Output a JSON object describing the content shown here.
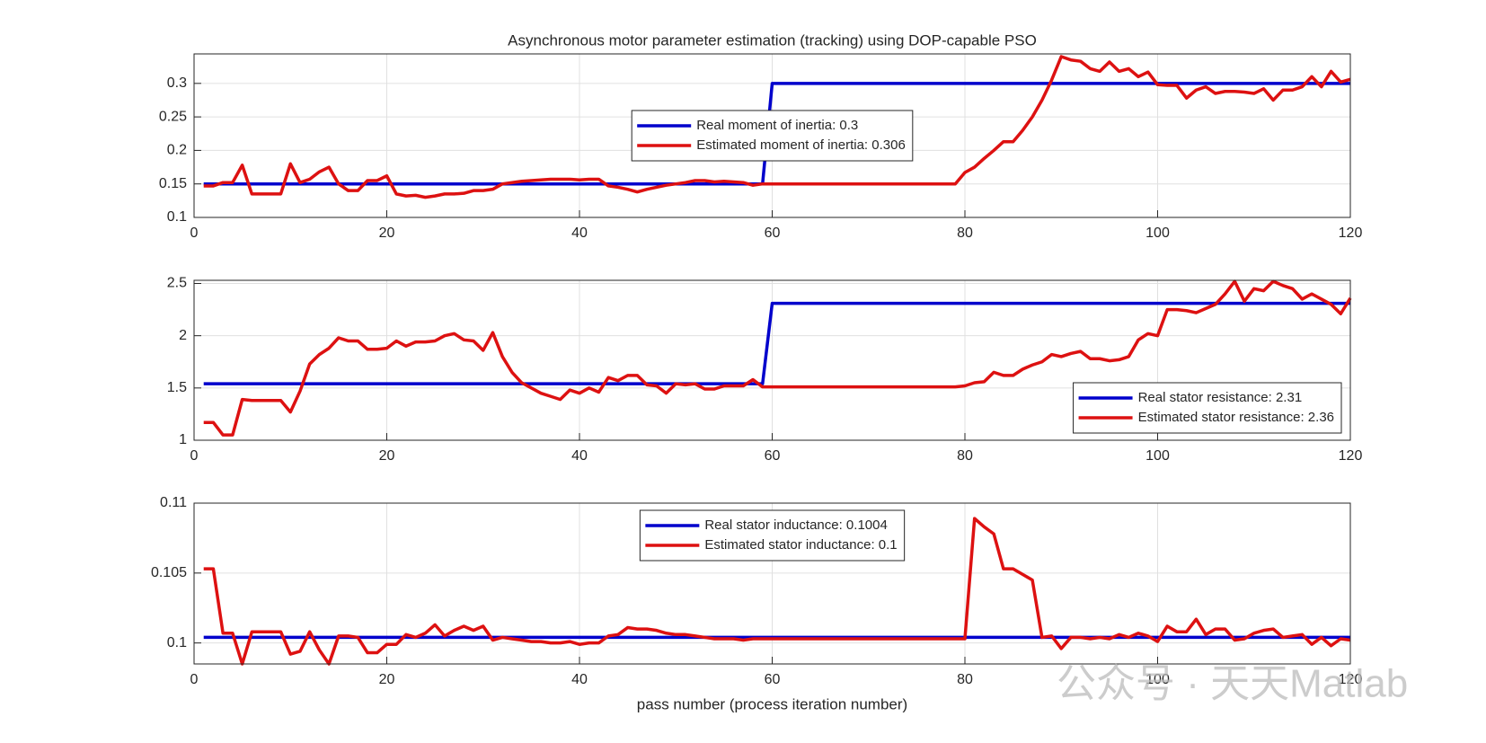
{
  "chart_data": [
    {
      "type": "line",
      "title": "Asynchronous motor parameter estimation (tracking) using DOP-capable PSO",
      "xlim": [
        0,
        120
      ],
      "xticks": [
        0,
        20,
        40,
        60,
        80,
        100,
        120
      ],
      "ylim": [
        0.1,
        0.344
      ],
      "yticks": [
        0.1,
        0.15,
        0.2,
        0.25,
        0.3
      ],
      "grid": true,
      "legend": "center",
      "series": [
        {
          "name": "Real moment of inertia: 0.3",
          "color": "#0000cc",
          "x": [
            1,
            59,
            60,
            120
          ],
          "values": [
            0.15,
            0.15,
            0.3,
            0.3
          ]
        },
        {
          "name": "Estimated moment of inertia: 0.306",
          "color": "#dd1111",
          "x": [
            1,
            2,
            3,
            4,
            5,
            6,
            7,
            8,
            9,
            10,
            11,
            12,
            13,
            14,
            15,
            16,
            17,
            18,
            19,
            20,
            21,
            22,
            23,
            24,
            25,
            26,
            27,
            28,
            29,
            30,
            31,
            32,
            33,
            34,
            35,
            36,
            37,
            38,
            39,
            40,
            41,
            42,
            43,
            44,
            45,
            46,
            47,
            48,
            49,
            50,
            51,
            52,
            53,
            54,
            55,
            56,
            57,
            58,
            59,
            60,
            61,
            62,
            63,
            64,
            65,
            66,
            67,
            68,
            69,
            70,
            71,
            72,
            73,
            74,
            75,
            76,
            77,
            78,
            79,
            80,
            81,
            82,
            83,
            84,
            85,
            86,
            87,
            88,
            89,
            90,
            91,
            92,
            93,
            94,
            95,
            96,
            97,
            98,
            99,
            100,
            101,
            102,
            103,
            104,
            105,
            106,
            107,
            108,
            109,
            110,
            111,
            112,
            113,
            114,
            115,
            116,
            117,
            118,
            119,
            120
          ],
          "values": [
            0.147,
            0.147,
            0.152,
            0.152,
            0.178,
            0.135,
            0.135,
            0.135,
            0.135,
            0.18,
            0.152,
            0.157,
            0.168,
            0.175,
            0.15,
            0.14,
            0.14,
            0.155,
            0.155,
            0.162,
            0.135,
            0.132,
            0.133,
            0.13,
            0.132,
            0.135,
            0.135,
            0.136,
            0.14,
            0.14,
            0.142,
            0.15,
            0.152,
            0.154,
            0.155,
            0.156,
            0.157,
            0.157,
            0.157,
            0.156,
            0.157,
            0.157,
            0.147,
            0.145,
            0.142,
            0.138,
            0.142,
            0.145,
            0.148,
            0.15,
            0.152,
            0.155,
            0.155,
            0.153,
            0.154,
            0.153,
            0.152,
            0.148,
            0.15,
            0.15,
            0.15,
            0.15,
            0.15,
            0.15,
            0.15,
            0.15,
            0.15,
            0.15,
            0.15,
            0.15,
            0.15,
            0.15,
            0.15,
            0.15,
            0.15,
            0.15,
            0.15,
            0.15,
            0.15,
            0.167,
            0.175,
            0.188,
            0.2,
            0.213,
            0.213,
            0.23,
            0.25,
            0.275,
            0.305,
            0.34,
            0.335,
            0.333,
            0.322,
            0.318,
            0.332,
            0.318,
            0.322,
            0.31,
            0.317,
            0.298,
            0.297,
            0.297,
            0.278,
            0.29,
            0.295,
            0.285,
            0.288,
            0.288,
            0.287,
            0.285,
            0.292,
            0.275,
            0.29,
            0.29,
            0.295,
            0.31,
            0.295,
            0.318,
            0.302,
            0.306
          ]
        }
      ]
    },
    {
      "type": "line",
      "xlim": [
        0,
        120
      ],
      "xticks": [
        0,
        20,
        40,
        60,
        80,
        100,
        120
      ],
      "ylim": [
        1,
        2.53
      ],
      "yticks": [
        1,
        1.5,
        2,
        2.5
      ],
      "grid": true,
      "legend": "southeast",
      "series": [
        {
          "name": "Real stator resistance: 2.31",
          "color": "#0000cc",
          "x": [
            1,
            59,
            60,
            120
          ],
          "values": [
            1.54,
            1.54,
            2.31,
            2.31
          ]
        },
        {
          "name": "Estimated stator resistance: 2.36",
          "color": "#dd1111",
          "x": [
            1,
            2,
            3,
            4,
            5,
            6,
            7,
            8,
            9,
            10,
            11,
            12,
            13,
            14,
            15,
            16,
            17,
            18,
            19,
            20,
            21,
            22,
            23,
            24,
            25,
            26,
            27,
            28,
            29,
            30,
            31,
            32,
            33,
            34,
            35,
            36,
            37,
            38,
            39,
            40,
            41,
            42,
            43,
            44,
            45,
            46,
            47,
            48,
            49,
            50,
            51,
            52,
            53,
            54,
            55,
            56,
            57,
            58,
            59,
            60,
            61,
            62,
            63,
            64,
            65,
            66,
            67,
            68,
            69,
            70,
            71,
            72,
            73,
            74,
            75,
            76,
            77,
            78,
            79,
            80,
            81,
            82,
            83,
            84,
            85,
            86,
            87,
            88,
            89,
            90,
            91,
            92,
            93,
            94,
            95,
            96,
            97,
            98,
            99,
            100,
            101,
            102,
            103,
            104,
            105,
            106,
            107,
            108,
            109,
            110,
            111,
            112,
            113,
            114,
            115,
            116,
            117,
            118,
            119,
            120
          ],
          "values": [
            1.17,
            1.17,
            1.05,
            1.05,
            1.39,
            1.38,
            1.38,
            1.38,
            1.38,
            1.27,
            1.47,
            1.73,
            1.82,
            1.88,
            1.98,
            1.95,
            1.95,
            1.87,
            1.87,
            1.88,
            1.95,
            1.9,
            1.94,
            1.94,
            1.95,
            2.0,
            2.02,
            1.96,
            1.95,
            1.86,
            2.03,
            1.8,
            1.65,
            1.55,
            1.5,
            1.45,
            1.42,
            1.39,
            1.48,
            1.45,
            1.5,
            1.46,
            1.6,
            1.57,
            1.62,
            1.62,
            1.53,
            1.52,
            1.45,
            1.54,
            1.53,
            1.54,
            1.49,
            1.49,
            1.52,
            1.52,
            1.52,
            1.58,
            1.51,
            1.51,
            1.51,
            1.51,
            1.51,
            1.51,
            1.51,
            1.51,
            1.51,
            1.51,
            1.51,
            1.51,
            1.51,
            1.51,
            1.51,
            1.51,
            1.51,
            1.51,
            1.51,
            1.51,
            1.51,
            1.52,
            1.55,
            1.56,
            1.65,
            1.62,
            1.62,
            1.68,
            1.72,
            1.75,
            1.82,
            1.8,
            1.83,
            1.85,
            1.78,
            1.78,
            1.76,
            1.77,
            1.8,
            1.96,
            2.02,
            2.0,
            2.25,
            2.25,
            2.24,
            2.22,
            2.26,
            2.3,
            2.4,
            2.52,
            2.33,
            2.45,
            2.43,
            2.52,
            2.48,
            2.45,
            2.35,
            2.4,
            2.35,
            2.3,
            2.21,
            2.36
          ]
        }
      ]
    },
    {
      "type": "line",
      "xlabel": "pass number (process iteration number)",
      "xlim": [
        0,
        120
      ],
      "xticks": [
        0,
        20,
        40,
        60,
        80,
        100,
        120
      ],
      "ylim": [
        0.0985,
        0.11
      ],
      "yticks": [
        0.1,
        0.105,
        0.11
      ],
      "grid": true,
      "legend": "north",
      "series": [
        {
          "name": "Real stator inductance: 0.1004",
          "color": "#0000cc",
          "x": [
            1,
            120
          ],
          "values": [
            0.1004,
            0.1004
          ]
        },
        {
          "name": "Estimated stator inductance: 0.1",
          "color": "#dd1111",
          "x": [
            1,
            2,
            3,
            4,
            5,
            6,
            7,
            8,
            9,
            10,
            11,
            12,
            13,
            14,
            15,
            16,
            17,
            18,
            19,
            20,
            21,
            22,
            23,
            24,
            25,
            26,
            27,
            28,
            29,
            30,
            31,
            32,
            33,
            34,
            35,
            36,
            37,
            38,
            39,
            40,
            41,
            42,
            43,
            44,
            45,
            46,
            47,
            48,
            49,
            50,
            51,
            52,
            53,
            54,
            55,
            56,
            57,
            58,
            59,
            60,
            61,
            62,
            63,
            64,
            65,
            66,
            67,
            68,
            69,
            70,
            71,
            72,
            73,
            74,
            75,
            76,
            77,
            78,
            79,
            80,
            81,
            82,
            83,
            84,
            85,
            86,
            87,
            88,
            89,
            90,
            91,
            92,
            93,
            94,
            95,
            96,
            97,
            98,
            99,
            100,
            101,
            102,
            103,
            104,
            105,
            106,
            107,
            108,
            109,
            110,
            111,
            112,
            113,
            114,
            115,
            116,
            117,
            118,
            119,
            120
          ],
          "values": [
            0.1053,
            0.1053,
            0.1007,
            0.1007,
            0.0985,
            0.1008,
            0.1008,
            0.1008,
            0.1008,
            0.0992,
            0.0994,
            0.1008,
            0.0995,
            0.0985,
            0.1005,
            0.1005,
            0.1004,
            0.0993,
            0.0993,
            0.0999,
            0.0999,
            0.1006,
            0.1004,
            0.1007,
            0.1013,
            0.1005,
            0.1009,
            0.1012,
            0.1009,
            0.1012,
            0.1002,
            0.1004,
            0.1003,
            0.1002,
            0.1001,
            0.1001,
            0.1,
            0.1,
            0.1001,
            0.0999,
            0.1,
            0.1,
            0.1005,
            0.1006,
            0.1011,
            0.101,
            0.101,
            0.1009,
            0.1007,
            0.1006,
            0.1006,
            0.1005,
            0.1004,
            0.1003,
            0.1003,
            0.1003,
            0.1002,
            0.1003,
            0.1003,
            0.1003,
            0.1003,
            0.1003,
            0.1003,
            0.1003,
            0.1003,
            0.1003,
            0.1003,
            0.1003,
            0.1003,
            0.1003,
            0.1003,
            0.1003,
            0.1003,
            0.1003,
            0.1003,
            0.1003,
            0.1003,
            0.1003,
            0.1003,
            0.1003,
            0.1089,
            0.1083,
            0.1078,
            0.1053,
            0.1053,
            0.1049,
            0.1045,
            0.1004,
            0.1005,
            0.0996,
            0.1004,
            0.1004,
            0.1003,
            0.1004,
            0.1003,
            0.1006,
            0.1004,
            0.1007,
            0.1005,
            0.1001,
            0.1012,
            0.1008,
            0.1008,
            0.1017,
            0.1006,
            0.101,
            0.101,
            0.1002,
            0.1003,
            0.1007,
            0.1009,
            0.101,
            0.1004,
            0.1005,
            0.1006,
            0.0999,
            0.1004,
            0.0998,
            0.1003,
            0.1002
          ]
        }
      ]
    }
  ],
  "watermark": "公众号 · 天天Matlab"
}
